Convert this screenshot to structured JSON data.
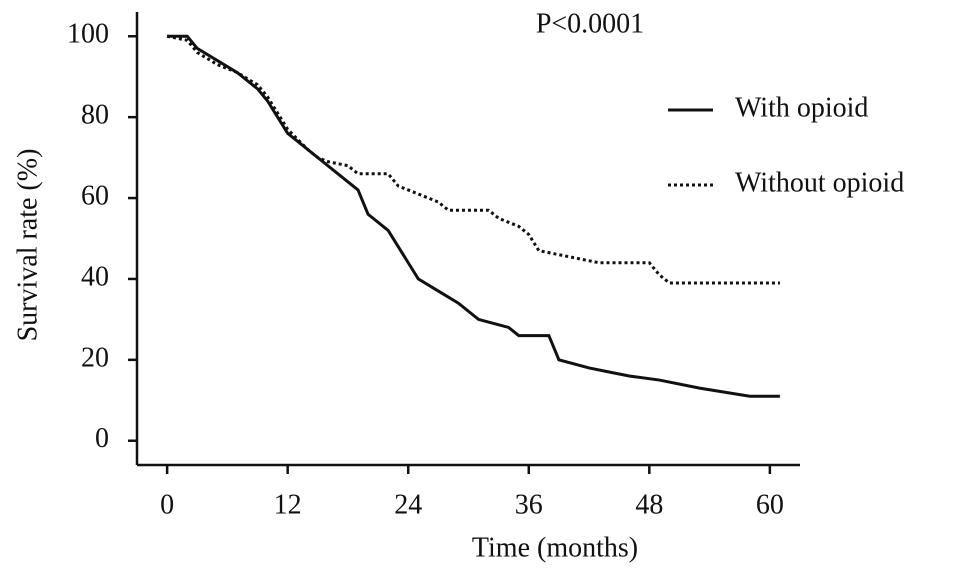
{
  "chart_data": {
    "type": "line",
    "annotation": "P<0.0001",
    "x_label": "Time (months)",
    "y_label": "Survival rate (%)",
    "xlim": [
      -3,
      63
    ],
    "xticks": [
      0,
      12,
      24,
      36,
      48,
      60
    ],
    "ylim": [
      -6,
      106
    ],
    "yticks": [
      0,
      20,
      40,
      60,
      80,
      100
    ],
    "legend": "right",
    "series": [
      {
        "name": "With opioid",
        "color": "#111111",
        "dash": "solid",
        "x": [
          0,
          2,
          3,
          5,
          7,
          9,
          10,
          11,
          12,
          13,
          15,
          17,
          19,
          20,
          22,
          23,
          24,
          25,
          27,
          29,
          31,
          34,
          35,
          38,
          39,
          42,
          44,
          46,
          49,
          53,
          58,
          61
        ],
        "values": [
          100,
          100,
          97,
          94,
          91,
          87,
          84,
          80,
          76,
          74,
          70,
          66,
          62,
          56,
          52,
          48,
          44,
          40,
          37,
          34,
          30,
          28,
          26,
          26,
          20,
          18,
          17,
          16,
          15,
          13,
          11,
          11
        ]
      },
      {
        "name": "Without opioid",
        "color": "#111111",
        "dash": "dotted",
        "x": [
          0,
          2,
          3,
          5,
          7,
          9,
          10,
          11,
          12,
          14,
          15,
          16,
          18,
          19,
          22,
          23,
          25,
          27,
          28,
          32,
          33,
          35,
          36,
          37,
          41,
          43,
          48,
          49,
          50,
          61
        ],
        "values": [
          100,
          99,
          96,
          93,
          91,
          88,
          85,
          81,
          77,
          72,
          70,
          69,
          68,
          66,
          66,
          63,
          61,
          59,
          57,
          57,
          55,
          53,
          51,
          47,
          45,
          44,
          44,
          41,
          39,
          39
        ]
      }
    ]
  }
}
